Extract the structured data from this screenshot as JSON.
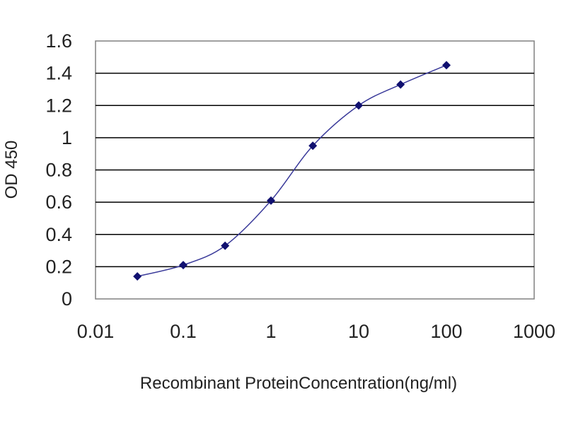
{
  "chart_data": {
    "type": "line",
    "title": "",
    "xlabel": "Recombinant ProteinConcentration(ng/ml)",
    "ylabel": "OD 450",
    "x_scale": "log",
    "xlim": [
      0.01,
      1000
    ],
    "ylim": [
      0,
      1.6
    ],
    "x_ticks": [
      "0.01",
      "0.1",
      "1",
      "10",
      "100",
      "1000"
    ],
    "y_ticks": [
      "0",
      "0.2",
      "0.4",
      "0.6",
      "0.8",
      "1",
      "1.2",
      "1.4",
      "1.6"
    ],
    "grid": "horizontal",
    "legend": "none",
    "colors": {
      "line": "#3a3a9a",
      "marker": "#101070",
      "plot_bg": "#ffffff",
      "grid": "#000000"
    },
    "series": [
      {
        "x": [
          0.03,
          0.1,
          0.3,
          1,
          3,
          10,
          30,
          100
        ],
        "y": [
          0.14,
          0.21,
          0.33,
          0.61,
          0.95,
          1.2,
          1.33,
          1.45
        ]
      }
    ]
  }
}
